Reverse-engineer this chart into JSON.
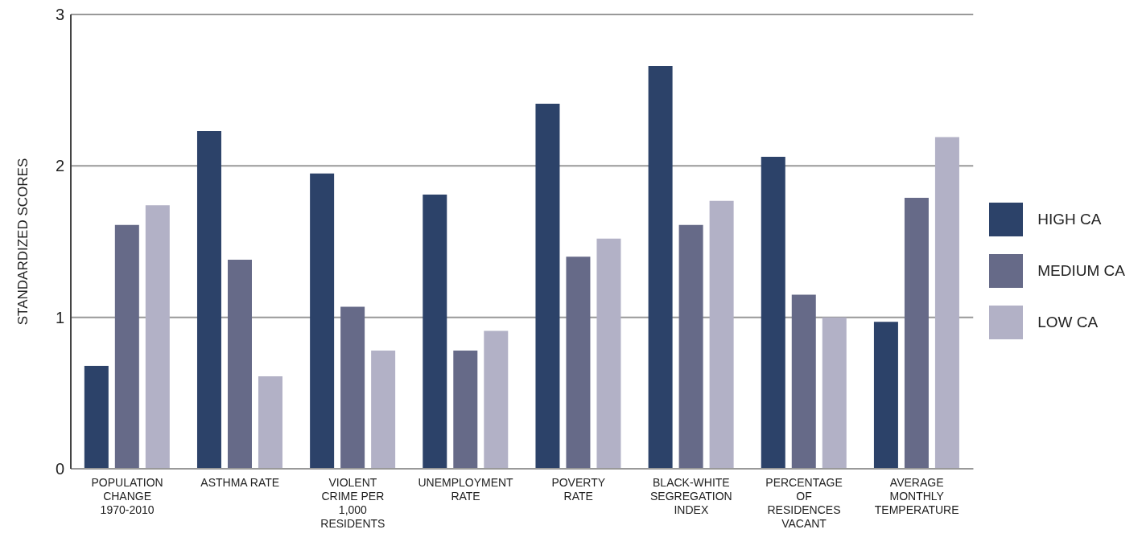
{
  "chart_data": {
    "type": "bar",
    "ylabel": "STANDARDIZED SCORES",
    "categories": [
      "POPULATION CHANGE 1970-2010",
      "ASTHMA RATE",
      "VIOLENT CRIME PER 1,000 RESIDENTS",
      "UNEMPLOYMENT RATE",
      "POVERTY RATE",
      "BLACK-WHITE SEGREGATION INDEX",
      "PERCENTAGE OF RESIDENCES VACANT",
      "AVERAGE MONTHLY TEMPERATURE"
    ],
    "series": [
      {
        "name": "HIGH CA",
        "color": "#2c4269",
        "values": [
          0.68,
          2.23,
          1.95,
          1.81,
          2.41,
          2.66,
          2.06,
          0.97
        ]
      },
      {
        "name": "MEDIUM CA",
        "color": "#666a88",
        "values": [
          1.61,
          1.38,
          1.07,
          0.78,
          1.4,
          1.61,
          1.15,
          1.79
        ]
      },
      {
        "name": "LOW CA",
        "color": "#b2b1c6",
        "values": [
          1.74,
          0.61,
          0.78,
          0.91,
          1.52,
          1.77,
          1.0,
          2.19
        ]
      }
    ],
    "ylim": [
      0,
      3
    ],
    "yticks": [
      0,
      1,
      2,
      3
    ],
    "grid": "y",
    "legend": "right"
  }
}
